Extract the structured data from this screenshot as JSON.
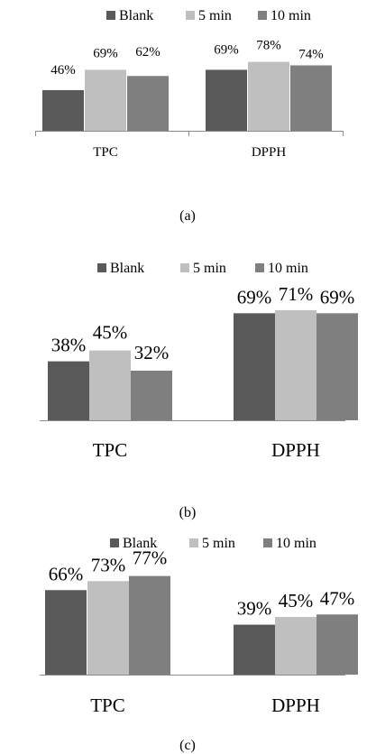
{
  "colors": {
    "blank": "#595959",
    "min5": "#bfbfbf",
    "min10": "#7f7f7f",
    "axis": "#8c8c8c"
  },
  "legend_labels": [
    "Blank",
    "5 min",
    "10 min"
  ],
  "chart_data": [
    {
      "type": "bar",
      "caption": "(a)",
      "categories": [
        "TPC",
        "DPPH"
      ],
      "series": [
        {
          "name": "Blank",
          "values": [
            46,
            69
          ],
          "labels": [
            "46%",
            "69%"
          ]
        },
        {
          "name": "5 min",
          "values": [
            69,
            78
          ],
          "labels": [
            "69%",
            "78%"
          ]
        },
        {
          "name": "10 min",
          "values": [
            62,
            74
          ],
          "labels": [
            "62%",
            "74%"
          ]
        }
      ],
      "legend": "top",
      "grid": false
    },
    {
      "type": "bar",
      "caption": "(b)",
      "categories": [
        "TPC",
        "DPPH"
      ],
      "series": [
        {
          "name": "Blank",
          "values": [
            38,
            69
          ],
          "labels": [
            "38%",
            "69%"
          ]
        },
        {
          "name": "5 min",
          "values": [
            45,
            71
          ],
          "labels": [
            "45%",
            "71%"
          ]
        },
        {
          "name": "10 min",
          "values": [
            32,
            69
          ],
          "labels": [
            "32%",
            "69%"
          ]
        }
      ],
      "legend": "top",
      "grid": false
    },
    {
      "type": "bar",
      "caption": "(c)",
      "categories": [
        "TPC",
        "DPPH"
      ],
      "series": [
        {
          "name": "Blank",
          "values": [
            66,
            39
          ],
          "labels": [
            "66%",
            "39%"
          ]
        },
        {
          "name": "5 min",
          "values": [
            73,
            45
          ],
          "labels": [
            "73%",
            "45%"
          ]
        },
        {
          "name": "10 min",
          "values": [
            77,
            47
          ],
          "labels": [
            "77%",
            "47%"
          ]
        }
      ],
      "legend": "top",
      "grid": false
    }
  ]
}
